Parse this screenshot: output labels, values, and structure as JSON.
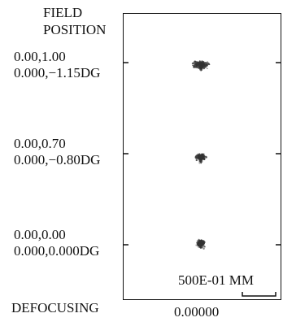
{
  "header": {
    "line1": "FIELD",
    "line2": "POSITION"
  },
  "fields": [
    {
      "relative": "0.00,1.00",
      "angle": "0.000,−1.15DG"
    },
    {
      "relative": "0.00,0.70",
      "angle": "0.000,−0.80DG"
    },
    {
      "relative": "0.00,0.00",
      "angle": "0.000,0.000DG"
    }
  ],
  "scale_label": "500E-01 MM",
  "footer": {
    "defocus_label": "DEFOCUSING",
    "defocus_value": "0.00000"
  },
  "colors": {
    "ink": "#111111",
    "spot": "#333333"
  }
}
